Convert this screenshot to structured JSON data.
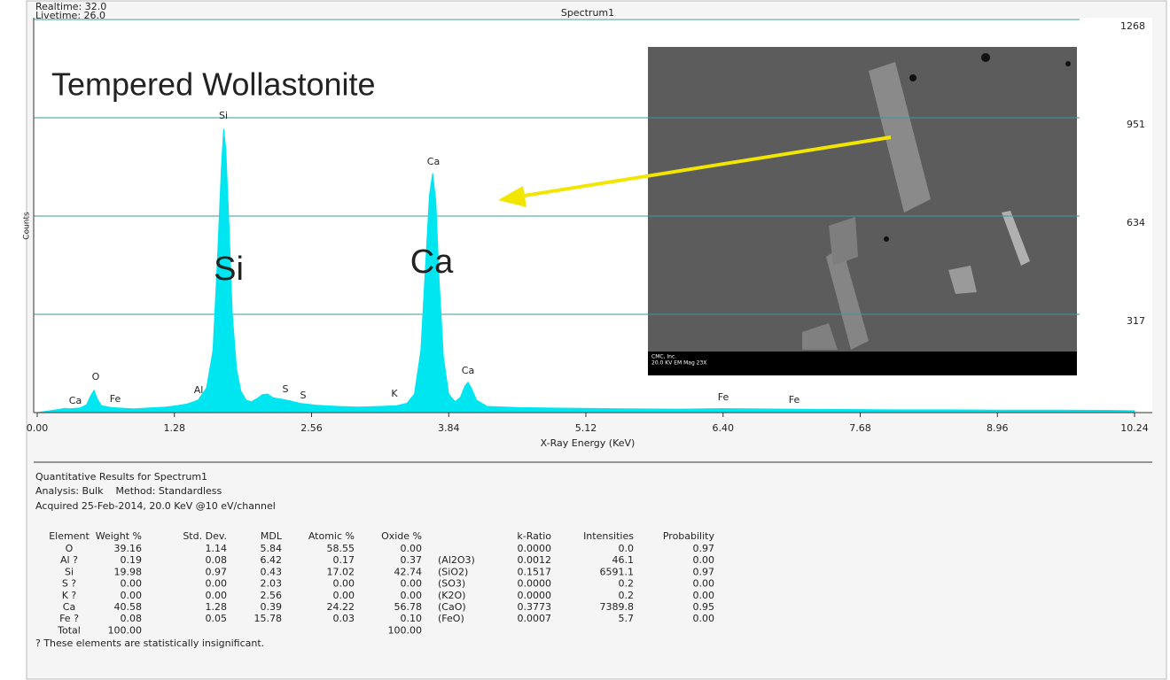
{
  "header": {
    "realtime": "Realtime: 32.0",
    "livetime": "Livetime: 26.0"
  },
  "chart_data": {
    "type": "area",
    "title": "Spectrum1",
    "annotation": "Tempered Wollastonite",
    "ylabel": "Counts",
    "xlabel": "X-Ray Energy (KeV)",
    "color": "#00e6f0",
    "grid": true,
    "peak_labels": [
      "Ca",
      "O",
      "Fe",
      "Al",
      "Si",
      "S",
      "S",
      "K",
      "Ca",
      "Ca",
      "Fe",
      "Fe"
    ],
    "big_labels": [
      "Si",
      "Ca"
    ],
    "x": [
      0.0,
      0.1,
      0.2,
      0.26,
      0.3,
      0.4,
      0.46,
      0.5,
      0.53,
      0.56,
      0.6,
      0.7,
      0.8,
      0.9,
      1.0,
      1.1,
      1.2,
      1.3,
      1.4,
      1.5,
      1.58,
      1.64,
      1.68,
      1.72,
      1.74,
      1.76,
      1.79,
      1.82,
      1.86,
      1.9,
      1.95,
      2.0,
      2.05,
      2.1,
      2.15,
      2.2,
      2.3,
      2.36,
      2.45,
      2.6,
      2.8,
      3.0,
      3.2,
      3.35,
      3.45,
      3.52,
      3.58,
      3.62,
      3.66,
      3.69,
      3.72,
      3.75,
      3.79,
      3.84,
      3.9,
      3.95,
      3.99,
      4.02,
      4.05,
      4.1,
      4.2,
      4.5,
      5.0,
      5.5,
      6.0,
      6.4,
      7.0,
      7.5,
      8.0,
      8.5,
      9.0,
      9.5,
      10.0,
      10.24
    ],
    "values": [
      0,
      5,
      10,
      14,
      12,
      15,
      25,
      55,
      72,
      45,
      22,
      16,
      14,
      12,
      14,
      16,
      18,
      22,
      28,
      40,
      80,
      200,
      480,
      800,
      915,
      850,
      600,
      320,
      140,
      70,
      40,
      35,
      45,
      58,
      60,
      48,
      42,
      38,
      30,
      24,
      20,
      18,
      20,
      22,
      30,
      60,
      200,
      450,
      700,
      772,
      680,
      430,
      180,
      60,
      35,
      50,
      85,
      98,
      80,
      40,
      20,
      16,
      14,
      12,
      11,
      13,
      11,
      10,
      9,
      9,
      8,
      8,
      7,
      6
    ],
    "xlim": [
      0,
      10.24
    ],
    "ylim": [
      0,
      1268
    ],
    "xticks": [
      {
        "value": 0,
        "label": "0.00"
      },
      1.28,
      2.56,
      3.84,
      5.12,
      {
        "value": 6.4,
        "label": "6.40"
      },
      7.68,
      8.96,
      10.24
    ],
    "yticks": [
      317,
      634,
      951,
      1268
    ]
  },
  "image": {
    "caption_line1": "CMC, Inc.",
    "caption_line2": "20.0 KV EM Mag 23X"
  },
  "report": {
    "title": "Quantitative Results for Spectrum1",
    "analysis": "Analysis: Bulk    Method: Standardless",
    "acquired": "Acquired 25-Feb-2014, 20.0 KeV @10 eV/channel",
    "table": {
      "header": [
        "Element",
        "Weight %",
        "Std. Dev.",
        "MDL",
        "Atomic %",
        "Oxide %",
        null,
        "k-Ratio",
        "Intensities",
        "Probability"
      ],
      "rows": [
        [
          "O",
          "39.16",
          "1.14",
          "5.84",
          "58.55",
          "0.00",
          null,
          "0.0000",
          "0.0",
          "0.97"
        ],
        [
          "Al ?",
          "0.19",
          "0.08",
          "6.42",
          "0.17",
          "0.37",
          "(Al2O3)",
          "0.0012",
          "46.1",
          "0.00"
        ],
        [
          "Si",
          "19.98",
          "0.97",
          "0.43",
          "17.02",
          "42.74",
          "(SiO2)",
          "0.1517",
          "6591.1",
          "0.97"
        ],
        [
          "S ?",
          "0.00",
          "0.00",
          "2.03",
          "0.00",
          "0.00",
          "(SO3)",
          "0.0000",
          "0.2",
          "0.00"
        ],
        [
          "K ?",
          "0.00",
          "0.00",
          "2.56",
          "0.00",
          "0.00",
          "(K2O)",
          "0.0000",
          "0.2",
          "0.00"
        ],
        [
          "Ca",
          "40.58",
          "1.28",
          "0.39",
          "24.22",
          "56.78",
          "(CaO)",
          "0.3773",
          "7389.8",
          "0.95"
        ],
        [
          "Fe ?",
          "0.08",
          "0.05",
          "15.78",
          "0.03",
          "0.10",
          "(FeO)",
          "0.0007",
          "5.7",
          "0.00"
        ],
        [
          "Total",
          "100.00",
          null,
          null,
          null,
          "100.00",
          null,
          null,
          null,
          null
        ]
      ]
    },
    "footnote": "? These elements are statistically insignificant."
  }
}
